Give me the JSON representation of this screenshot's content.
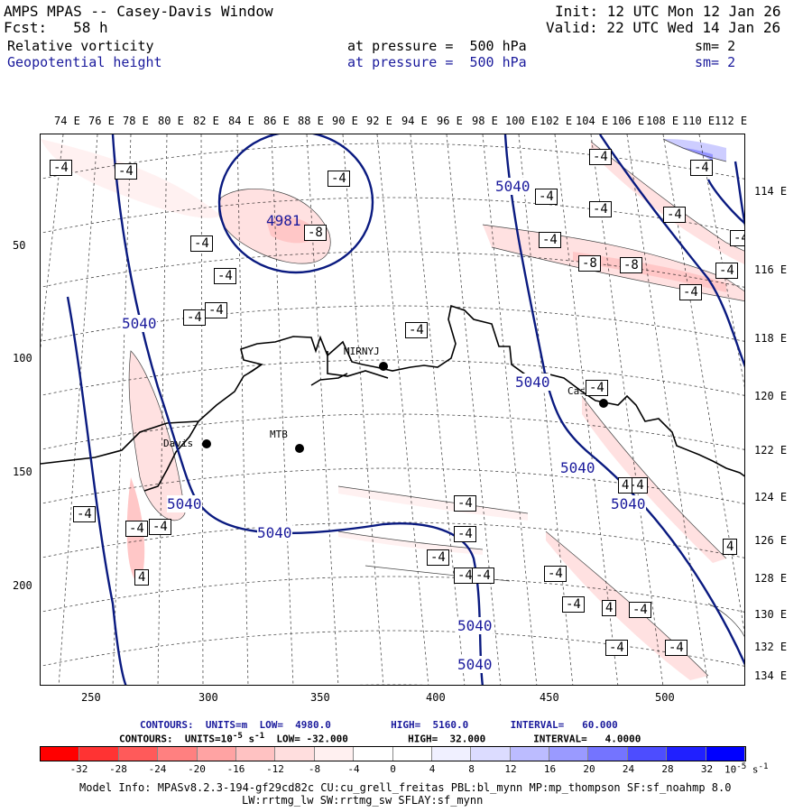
{
  "header": {
    "title": "AMPS MPAS -- Casey-Davis Window",
    "fcst": "Fcst:   58 h",
    "init": "Init: 12 UTC Mon 12 Jan 26",
    "valid": "Valid: 22 UTC Wed 14 Jan 26",
    "field1": {
      "name": "Relative vorticity",
      "level": "at pressure =  500 hPa",
      "sm": "sm= 2"
    },
    "field2": {
      "name": "Geopotential height",
      "level": "at pressure =  500 hPa",
      "sm": "sm= 2"
    }
  },
  "top_lon_labels": [
    "74 E",
    "76 E",
    "78 E",
    "80 E",
    "82 E",
    "84 E",
    "86 E",
    "88 E",
    "90 E",
    "92 E",
    "94 E",
    "96 E",
    "98 E",
    "100 E",
    "102 E",
    "104 E",
    "106 E",
    "108 E",
    "110 E",
    "112 E"
  ],
  "right_lon_labels": [
    "114 E",
    "116 E",
    "118 E",
    "120 E",
    "122 E",
    "124 E",
    "126 E",
    "128 E",
    "130 E",
    "132 E",
    "134 E"
  ],
  "left_axis_labels": [
    "50",
    "100",
    "150",
    "200"
  ],
  "bottom_axis_labels": [
    "250",
    "300",
    "350",
    "400",
    "450",
    "500"
  ],
  "stations": [
    {
      "name": "Davis"
    },
    {
      "name": "MTB"
    },
    {
      "name": "MIRNYJ"
    },
    {
      "name": "Casey"
    }
  ],
  "height_contour_labels": [
    "5040",
    "5040",
    "5040",
    "5040",
    "5040",
    "5040",
    "5040",
    "5040",
    "5040"
  ],
  "height_min_label": "4981",
  "vort_labels": [
    "-4",
    "-4",
    "-4",
    "-4",
    "-8",
    "-4",
    "-4",
    "-4",
    "-4",
    "-4",
    "-4",
    "-4",
    "-4",
    "-4",
    "-8",
    "-8",
    "-4",
    "-4",
    "-4",
    "-4",
    "-4",
    "-4",
    "-4",
    "-4",
    "-4",
    "-4",
    "-4",
    "-4",
    "-4",
    "-4",
    "-4",
    "-4",
    "-4",
    "-4",
    "-4",
    "4",
    "4",
    "4",
    "4"
  ],
  "contours_info": {
    "line1": "CONTOURS:  UNITS=m  LOW=  4980.0          HIGH=  5160.0       INTERVAL=   60.000",
    "line2_a": "CONTOURS:  UNITS=10",
    "line2_sup": "-5",
    "line2_b": " s",
    "line2_sup2": "-1",
    "line2_c": "  LOW= -32.000          HIGH=  32.000        INTERVAL=   4.0000"
  },
  "colorbar": {
    "colors": [
      "#ff0000",
      "#ff3333",
      "#ff5a5a",
      "#ff8080",
      "#ffa3a3",
      "#ffc2c2",
      "#ffdede",
      "#fff0f0",
      "#ffffff",
      "#ffffff",
      "#f0f0ff",
      "#dcdcff",
      "#bcbcff",
      "#9a9aff",
      "#7474ff",
      "#4d4dff",
      "#2020ff",
      "#0000ff"
    ],
    "labels": [
      "-32",
      "-28",
      "-24",
      "-20",
      "-16",
      "-12",
      "-8",
      "-4",
      "0",
      "4",
      "8",
      "12",
      "16",
      "20",
      "24",
      "28",
      "32"
    ],
    "unit": "10",
    "unit_sup": "-5",
    "unit_tail": " s",
    "unit_sup2": "-1"
  },
  "model_info": {
    "line1": "Model Info: MPASv8.2.3-194-gf29cd82c CU:cu_grell_freitas PBL:bl_mynn MP:mp_thompson SF:sf_noahmp 8.0",
    "line2": "LW:rrtmg_lw SW:rrtmg_sw SFLAY:sf_mynn"
  },
  "colors": {
    "height_contour": "#0a1a80",
    "label_blue": "#1a1a9c"
  }
}
